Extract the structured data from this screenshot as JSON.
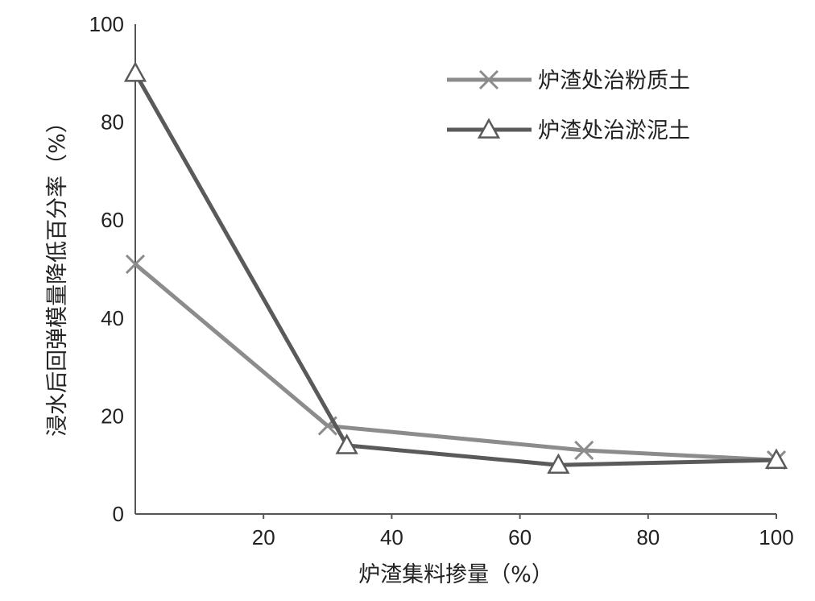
{
  "chart_data": {
    "type": "line",
    "xlabel": "炉渣集料掺量（%）",
    "ylabel": "浸水后回弹模量降低百分率（%）",
    "xlim": [
      0,
      100
    ],
    "ylim": [
      0,
      100
    ],
    "xticks": [
      "20",
      "40",
      "60",
      "80",
      "100"
    ],
    "yticks": [
      "0",
      "20",
      "40",
      "60",
      "80",
      "100"
    ],
    "grid": false,
    "legend_position": "top-right",
    "series": [
      {
        "name": "炉渣处治粉质土",
        "marker": "x",
        "color": "#8c8c8c",
        "x": [
          0,
          30,
          70,
          100
        ],
        "y": [
          51,
          18,
          13,
          11
        ]
      },
      {
        "name": "炉渣处治淤泥土",
        "marker": "triangle",
        "color": "#5a5a5a",
        "x": [
          0,
          33,
          66,
          100
        ],
        "y": [
          90,
          14,
          10,
          11
        ]
      }
    ]
  }
}
